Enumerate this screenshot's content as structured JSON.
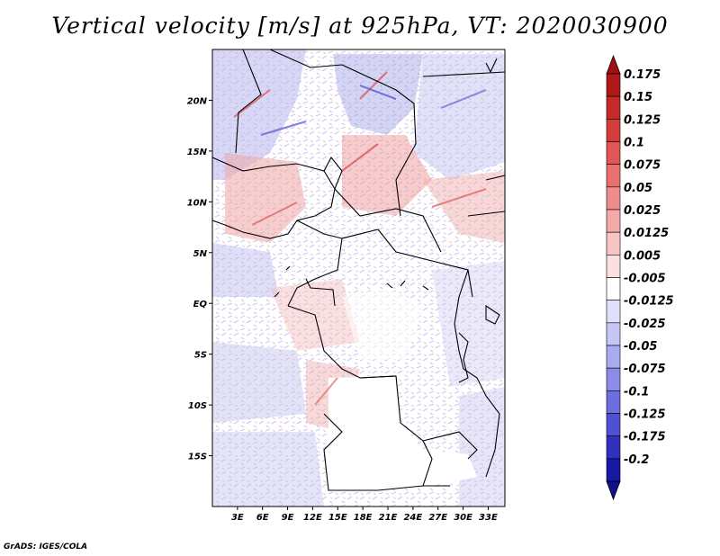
{
  "title": "Vertical velocity [m/s] at 925hPa, VT: 2020030900",
  "credit": "GrADS: IGES/COLA",
  "map": {
    "lon_range": [
      0,
      35
    ],
    "lat_range": [
      -20,
      25
    ],
    "lat_ticks": [
      {
        "value": 20,
        "label": "20N"
      },
      {
        "value": 15,
        "label": "15N"
      },
      {
        "value": 10,
        "label": "10N"
      },
      {
        "value": 5,
        "label": "5N"
      },
      {
        "value": 0,
        "label": "EQ"
      },
      {
        "value": -5,
        "label": "5S"
      },
      {
        "value": -10,
        "label": "10S"
      },
      {
        "value": -15,
        "label": "15S"
      }
    ],
    "lon_ticks": [
      {
        "value": 3,
        "label": "3E"
      },
      {
        "value": 6,
        "label": "6E"
      },
      {
        "value": 9,
        "label": "9E"
      },
      {
        "value": 12,
        "label": "12E"
      },
      {
        "value": 15,
        "label": "15E"
      },
      {
        "value": 18,
        "label": "18E"
      },
      {
        "value": 21,
        "label": "21E"
      },
      {
        "value": 24,
        "label": "24E"
      },
      {
        "value": 27,
        "label": "27E"
      },
      {
        "value": 30,
        "label": "30E"
      },
      {
        "value": 33,
        "label": "33E"
      }
    ]
  },
  "colorbar": {
    "levels": [
      {
        "label": "0.175",
        "color": "#b01818"
      },
      {
        "label": "0.15",
        "color": "#c42a2a"
      },
      {
        "label": "0.125",
        "color": "#d43c3c"
      },
      {
        "label": "0.1",
        "color": "#e25656"
      },
      {
        "label": "0.075",
        "color": "#ea7070"
      },
      {
        "label": "0.05",
        "color": "#f08c8c"
      },
      {
        "label": "0.025",
        "color": "#f5a8a8"
      },
      {
        "label": "0.0125",
        "color": "#f9c4c4"
      },
      {
        "label": "0.005",
        "color": "#fce0e0"
      },
      {
        "label": "-0.005",
        "color": "#ffffff"
      },
      {
        "label": "-0.0125",
        "color": "#e0e0fa"
      },
      {
        "label": "-0.025",
        "color": "#c6c6f5"
      },
      {
        "label": "-0.05",
        "color": "#aaaaf0"
      },
      {
        "label": "-0.075",
        "color": "#8c8ce8"
      },
      {
        "label": "-0.1",
        "color": "#6e6ee0"
      },
      {
        "label": "-0.125",
        "color": "#5050d2"
      },
      {
        "label": "-0.175",
        "color": "#3030bc"
      },
      {
        "label": "-0.2",
        "color": "#1818a2"
      }
    ],
    "top_color": "#a01010",
    "bottom_color": "#10108c"
  }
}
